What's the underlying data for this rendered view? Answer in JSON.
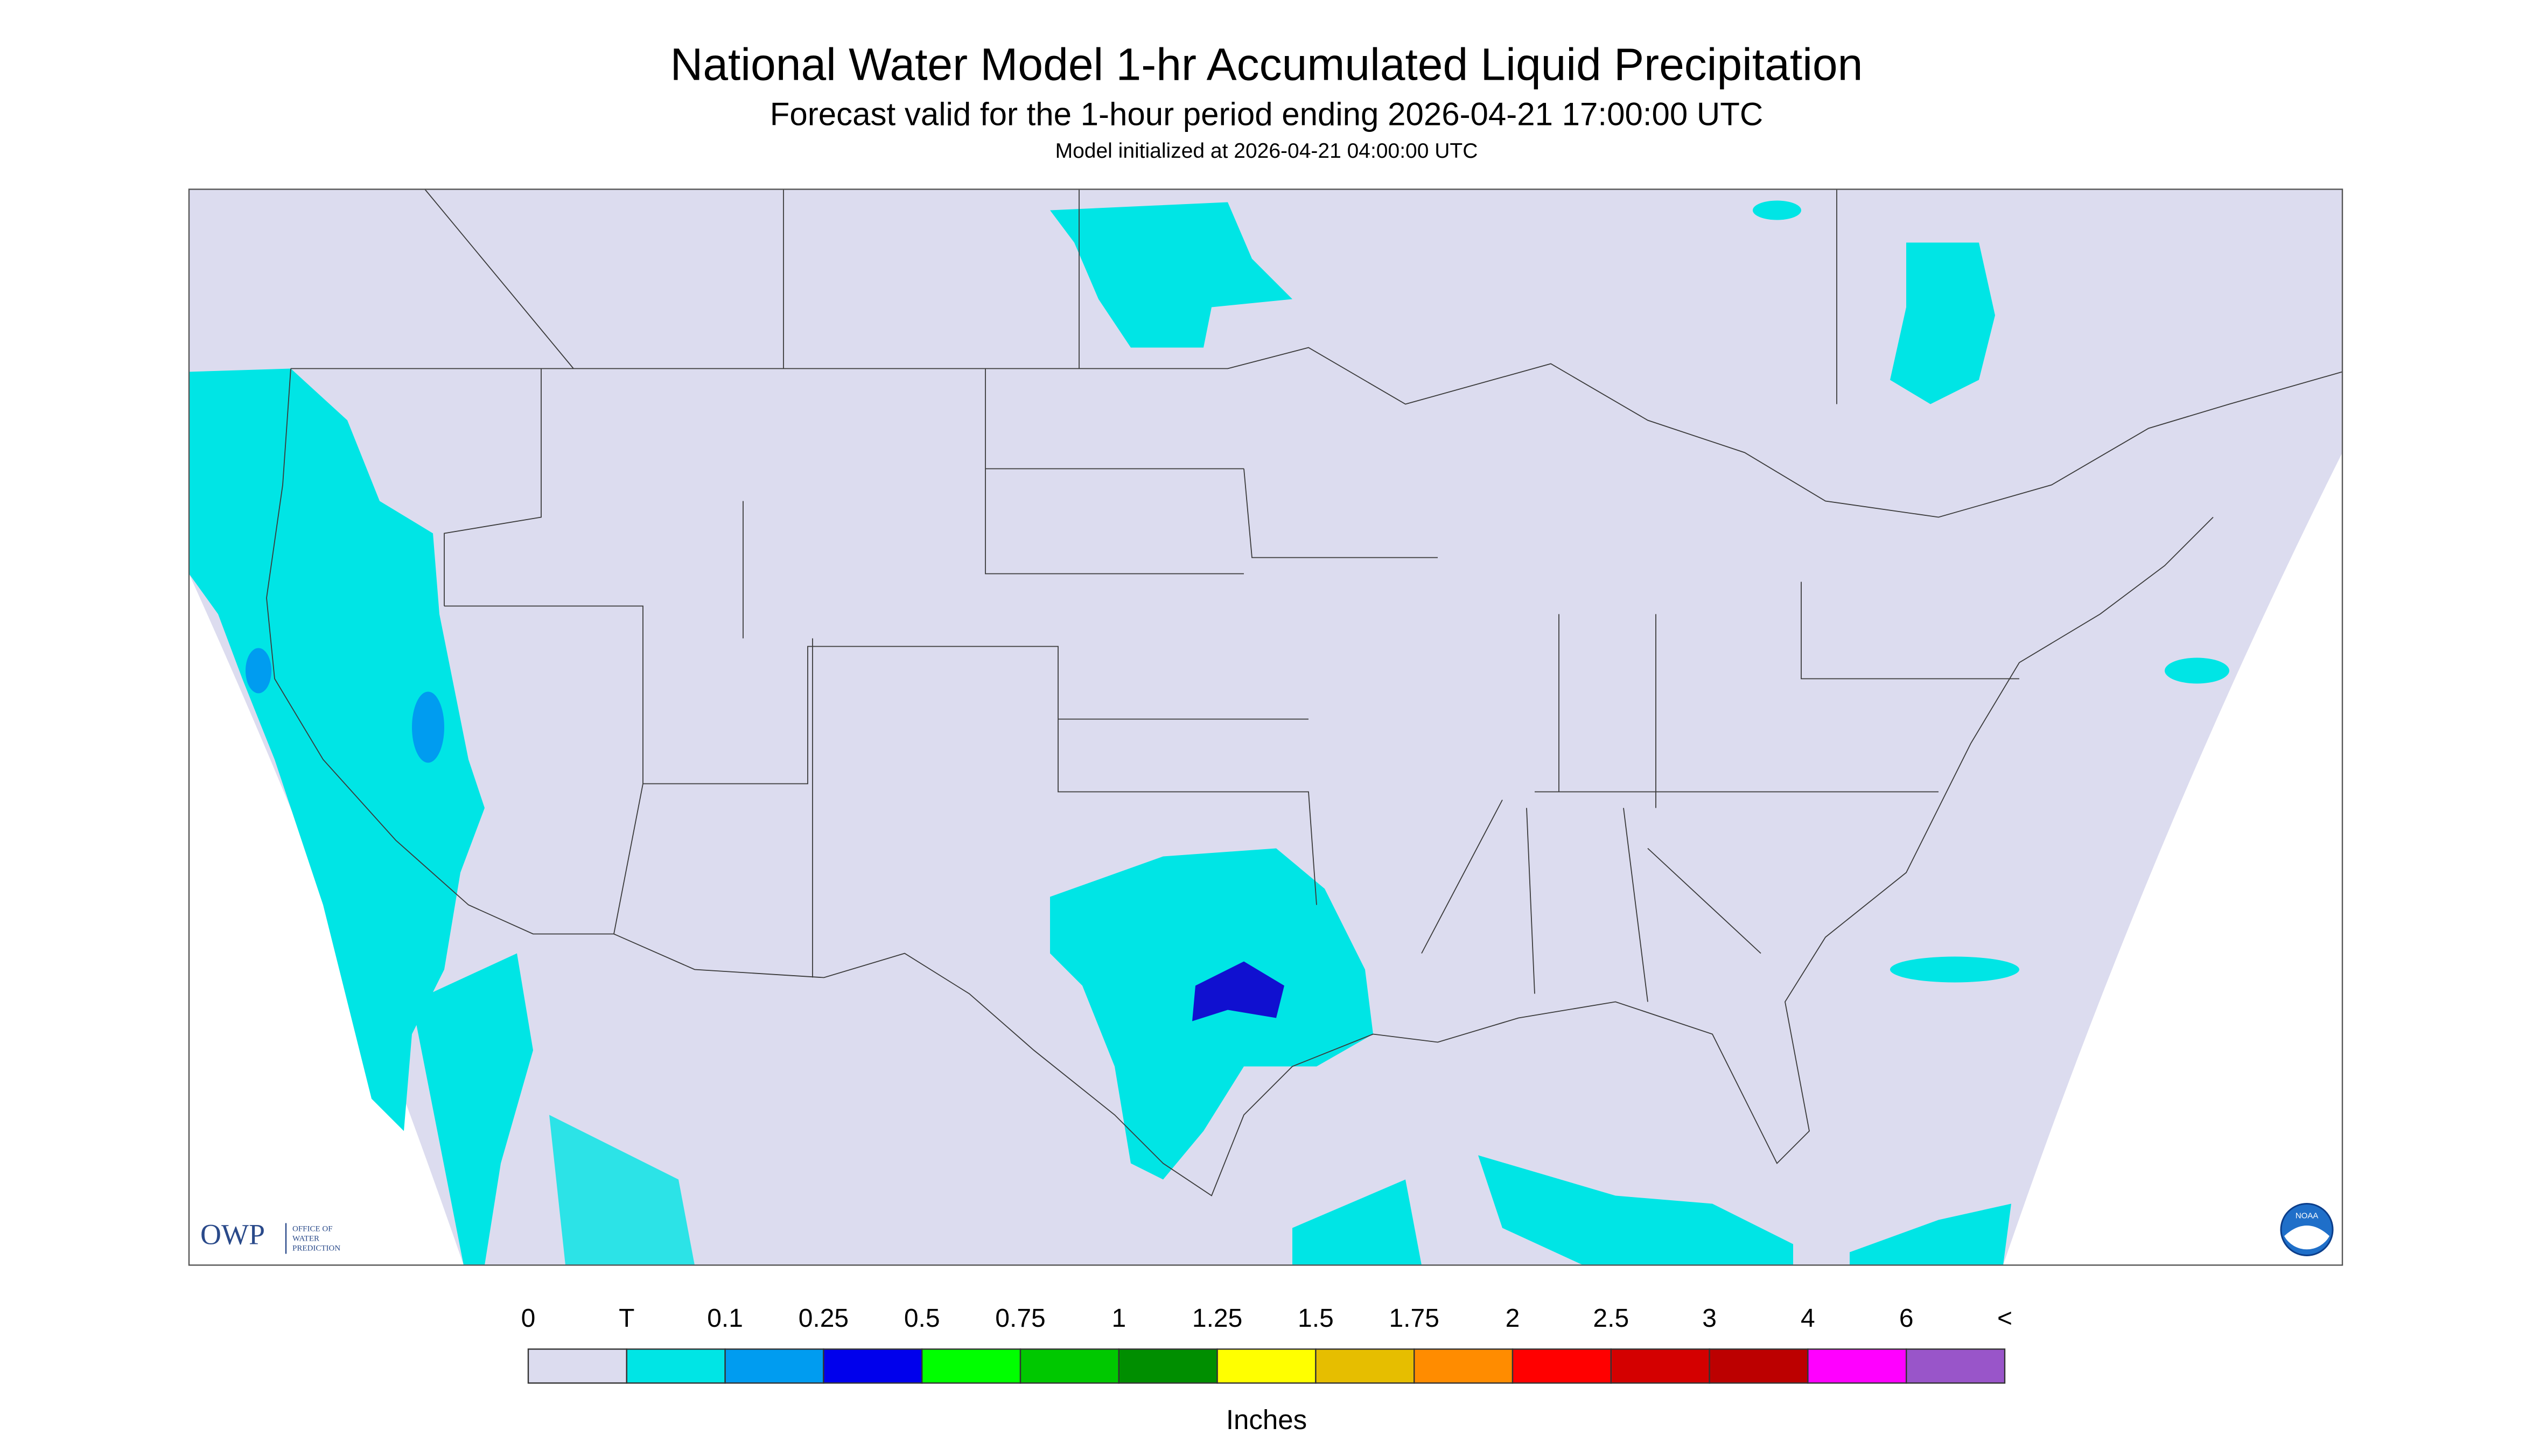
{
  "header": {
    "title": "National Water Model 1-hr Accumulated Liquid Precipitation",
    "subtitle": "Forecast valid for the 1-hour period ending 2026-04-21 17:00:00 UTC",
    "initialized": "Model initialized at 2026-04-21 04:00:00 UTC"
  },
  "logos": {
    "owp": "OWP",
    "owp_name": [
      "OFFICE OF",
      "WATER",
      "PREDICTION"
    ],
    "noaa": "NOAA"
  },
  "legend": {
    "labels": [
      "0",
      "T",
      "0.1",
      "0.25",
      "0.5",
      "0.75",
      "1",
      "1.25",
      "1.5",
      "1.75",
      "2",
      "2.5",
      "3",
      "4",
      "6",
      "<"
    ],
    "colors": [
      "#dcdcef",
      "#00e5e5",
      "#009cf0",
      "#0000ec",
      "#00ff00",
      "#00c800",
      "#008e00",
      "#ffff00",
      "#e6be00",
      "#ff8c00",
      "#ff0000",
      "#d40000",
      "#bc0000",
      "#ff00ff",
      "#9955c9"
    ],
    "units": "Inches"
  }
}
